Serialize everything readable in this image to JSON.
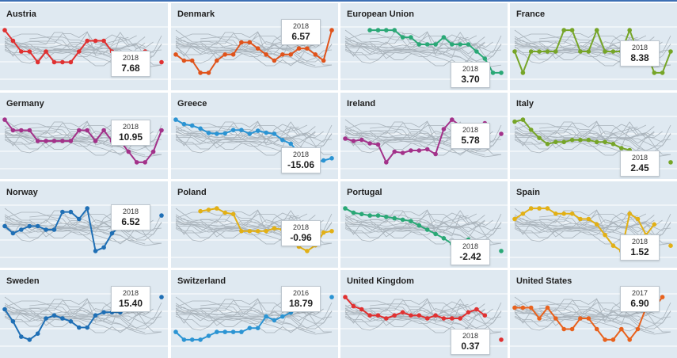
{
  "panels": [
    {
      "name": "Austria",
      "color": "#e03131",
      "highlight_year": "2018",
      "highlight_value": "7.68",
      "values": [
        7.9,
        7.8,
        7.7,
        7.7,
        7.6,
        7.7,
        7.6,
        7.6,
        7.6,
        7.7,
        7.8,
        7.8,
        7.8,
        7.7,
        7.6,
        7.5,
        7.6,
        7.7,
        null,
        7.6
      ]
    },
    {
      "name": "Denmark",
      "color": "#e0531b",
      "highlight_year": "2018",
      "highlight_value": "6.57",
      "values": [
        6.4,
        6.3,
        6.3,
        6.1,
        6.1,
        6.3,
        6.4,
        6.4,
        6.6,
        6.6,
        6.5,
        6.4,
        6.3,
        6.4,
        6.4,
        6.5,
        6.5,
        6.4,
        6.3,
        6.8
      ]
    },
    {
      "name": "European Union",
      "color": "#2aa876",
      "highlight_year": "2018",
      "highlight_value": "3.70",
      "values": [
        null,
        null,
        null,
        4.5,
        4.5,
        4.5,
        4.5,
        4.4,
        4.4,
        4.3,
        4.3,
        4.3,
        4.4,
        4.3,
        4.3,
        4.3,
        4.2,
        4.1,
        3.9,
        3.9
      ]
    },
    {
      "name": "France",
      "color": "#76a528",
      "highlight_year": "2018",
      "highlight_value": "8.38",
      "values": [
        8.6,
        8.5,
        8.6,
        8.6,
        8.6,
        8.6,
        8.7,
        8.7,
        8.6,
        8.6,
        8.7,
        8.6,
        8.6,
        8.6,
        8.7,
        8.6,
        8.6,
        8.5,
        8.5,
        8.6
      ]
    },
    {
      "name": "Germany",
      "color": "#a3328a",
      "highlight_year": "2018",
      "highlight_value": "10.95",
      "values": [
        11.4,
        11.3,
        11.3,
        11.3,
        11.2,
        11.2,
        11.2,
        11.2,
        11.2,
        11.3,
        11.3,
        11.2,
        11.3,
        11.2,
        11.2,
        11.1,
        11.0,
        11.0,
        11.1,
        11.3
      ]
    },
    {
      "name": "Greece",
      "color": "#2b94d3",
      "highlight_year": "2018",
      "highlight_value": "-15.06",
      "values": [
        -4.0,
        -5.2,
        -5.6,
        -6.4,
        -7.6,
        -7.8,
        -7.7,
        -6.8,
        -6.8,
        -7.8,
        -7.0,
        -7.5,
        -7.8,
        -9.5,
        -10.5,
        -13.0,
        -14.5,
        -15.5,
        -15.0,
        -14.4
      ]
    },
    {
      "name": "Ireland",
      "color": "#a3328a",
      "highlight_year": "2018",
      "highlight_value": "5.78",
      "values": [
        4.7,
        4.5,
        4.6,
        4.3,
        4.2,
        2.7,
        3.6,
        3.5,
        3.7,
        3.7,
        3.8,
        3.4,
        5.5,
        6.3,
        5.8,
        4.5,
        5.0,
        6.0,
        null,
        5.1
      ]
    },
    {
      "name": "Italy",
      "color": "#76a528",
      "highlight_year": "2018",
      "highlight_value": "2.45",
      "values": [
        4.5,
        4.6,
        4.1,
        3.7,
        3.4,
        3.5,
        3.5,
        3.6,
        3.6,
        3.6,
        3.5,
        3.5,
        3.4,
        3.2,
        3.1,
        2.7,
        2.6,
        null,
        null,
        2.5
      ]
    },
    {
      "name": "Norway",
      "color": "#1f6fb5",
      "highlight_year": "2018",
      "highlight_value": "6.52",
      "values": [
        6.2,
        6.0,
        6.1,
        6.2,
        6.2,
        6.1,
        6.1,
        6.6,
        6.6,
        6.4,
        6.7,
        5.5,
        5.6,
        6.0,
        6.2,
        6.3,
        6.5,
        null,
        null,
        6.5
      ]
    },
    {
      "name": "Poland",
      "color": "#e2b015",
      "highlight_year": "2018",
      "highlight_value": "-0.96",
      "values": [
        null,
        null,
        null,
        0.9,
        1.0,
        1.1,
        0.8,
        0.7,
        -0.5,
        -0.5,
        -0.5,
        -0.5,
        -0.3,
        -0.4,
        -0.7,
        -1.6,
        -1.9,
        -1.5,
        -0.6,
        -0.5
      ]
    },
    {
      "name": "Portugal",
      "color": "#2aa876",
      "highlight_year": "2018",
      "highlight_value": "-2.42",
      "values": [
        1.3,
        1.0,
        0.9,
        0.8,
        0.8,
        0.7,
        0.6,
        0.5,
        0.4,
        0.1,
        -0.2,
        -0.5,
        -0.8,
        -1.2,
        -1.4,
        -0.9,
        -1.3,
        -1.6,
        null,
        -1.7
      ]
    },
    {
      "name": "Spain",
      "color": "#e2b015",
      "highlight_year": "2018",
      "highlight_value": "1.52",
      "values": [
        1.8,
        1.9,
        2.0,
        2.0,
        2.0,
        1.9,
        1.9,
        1.9,
        1.8,
        1.8,
        1.7,
        1.5,
        1.3,
        1.2,
        1.9,
        1.8,
        1.5,
        1.7,
        null,
        1.3
      ]
    },
    {
      "name": "Sweden",
      "color": "#1f6fb5",
      "highlight_year": "2018",
      "highlight_value": "15.40",
      "values": [
        15.6,
        15.2,
        14.7,
        14.6,
        14.8,
        15.3,
        15.4,
        15.3,
        15.2,
        15.0,
        15.0,
        15.4,
        15.5,
        15.5,
        15.5,
        15.6,
        15.7,
        null,
        null,
        16.0
      ]
    },
    {
      "name": "Switzerland",
      "color": "#2b94d3",
      "highlight_year": "2016",
      "highlight_value": "18.79",
      "values": [
        19.5,
        19.3,
        19.3,
        19.3,
        19.4,
        19.5,
        19.5,
        19.5,
        19.5,
        19.6,
        19.6,
        19.9,
        19.8,
        19.9,
        20.0,
        20.1,
        null,
        null,
        null,
        20.4
      ]
    },
    {
      "name": "United Kingdom",
      "color": "#e03131",
      "highlight_year": "2018",
      "highlight_value": "0.37",
      "values": [
        2.0,
        1.7,
        1.6,
        1.4,
        1.4,
        1.3,
        1.4,
        1.5,
        1.4,
        1.4,
        1.3,
        1.4,
        1.3,
        1.3,
        1.3,
        1.5,
        1.6,
        1.4,
        null,
        0.6
      ]
    },
    {
      "name": "United States",
      "color": "#e8621e",
      "highlight_year": "2017",
      "highlight_value": "6.90",
      "values": [
        7.3,
        7.3,
        7.3,
        7.2,
        7.3,
        7.2,
        7.1,
        7.1,
        7.2,
        7.2,
        7.1,
        7.0,
        7.0,
        7.1,
        7.0,
        7.1,
        7.3,
        7.3,
        7.4,
        null
      ]
    }
  ],
  "chart_data": {
    "type": "line",
    "layout": "small-multiples",
    "title": "",
    "xlabel": "",
    "ylabel": "",
    "grid": true,
    "series": [
      {
        "name": "Austria",
        "last_label": "2018: 7.68"
      },
      {
        "name": "Denmark",
        "last_label": "2018: 6.57"
      },
      {
        "name": "European Union",
        "last_label": "2018: 3.70"
      },
      {
        "name": "France",
        "last_label": "2018: 8.38"
      },
      {
        "name": "Germany",
        "last_label": "2018: 10.95"
      },
      {
        "name": "Greece",
        "last_label": "2018: -15.06"
      },
      {
        "name": "Ireland",
        "last_label": "2018: 5.78"
      },
      {
        "name": "Italy",
        "last_label": "2018: 2.45"
      },
      {
        "name": "Norway",
        "last_label": "2018: 6.52"
      },
      {
        "name": "Poland",
        "last_label": "2018: -0.96"
      },
      {
        "name": "Portugal",
        "last_label": "2018: -2.42"
      },
      {
        "name": "Spain",
        "last_label": "2018: 1.52"
      },
      {
        "name": "Sweden",
        "last_label": "2018: 15.40"
      },
      {
        "name": "Switzerland",
        "last_label": "2016: 18.79"
      },
      {
        "name": "United Kingdom",
        "last_label": "2018: 0.37"
      },
      {
        "name": "United States",
        "last_label": "2017: 6.90"
      }
    ]
  }
}
